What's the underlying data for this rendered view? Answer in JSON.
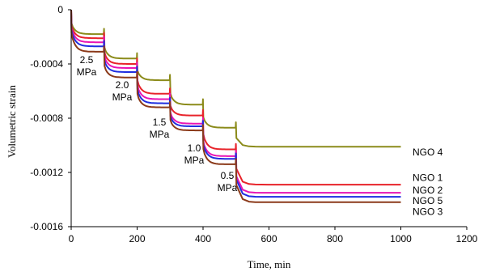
{
  "chart_data": {
    "type": "line",
    "xlabel": "Time, min",
    "ylabel": "Volumetric strain",
    "xlim": [
      0,
      1200
    ],
    "ylim": [
      -0.0016,
      0
    ],
    "x_ticks": [
      {
        "value": 0,
        "label": "0"
      },
      {
        "value": 200,
        "label": "200"
      },
      {
        "value": 400,
        "label": "400"
      },
      {
        "value": 600,
        "label": "600"
      },
      {
        "value": 800,
        "label": "800"
      },
      {
        "value": 1000,
        "label": "1000"
      },
      {
        "value": 1200,
        "label": "1200"
      }
    ],
    "y_ticks": [
      {
        "value": 0,
        "label": "0"
      },
      {
        "value": -0.0004,
        "label": "-0.0004"
      },
      {
        "value": -0.0008,
        "label": "-0.0008"
      },
      {
        "value": -0.0012,
        "label": "-0.0012"
      },
      {
        "value": -0.0016,
        "label": "-0.0016"
      }
    ],
    "grid": false,
    "legend": "none",
    "stage_start_times": [
      0,
      100,
      200,
      300,
      400,
      500
    ],
    "series": [
      {
        "name": "NGO 4",
        "color": "#8b8b1a",
        "stage_levels": [
          -0.00018,
          -0.00036,
          -0.00052,
          -0.0007,
          -0.00087,
          -0.00101
        ]
      },
      {
        "name": "NGO 1",
        "color": "#e8232a",
        "stage_levels": [
          -0.00021,
          -0.0004,
          -0.00062,
          -0.00078,
          -0.00103,
          -0.00129
        ]
      },
      {
        "name": "NGO 2",
        "color": "#e815b5",
        "stage_levels": [
          -0.00024,
          -0.00043,
          -0.00066,
          -0.00084,
          -0.00108,
          -0.00135
        ]
      },
      {
        "name": "NGO 5",
        "color": "#1f2ee0",
        "stage_levels": [
          -0.00027,
          -0.00046,
          -0.00069,
          -0.00086,
          -0.0011,
          -0.00138
        ]
      },
      {
        "name": "NGO 3",
        "color": "#8b3a1a",
        "stage_levels": [
          -0.00031,
          -0.0005,
          -0.00072,
          -0.00089,
          -0.00114,
          -0.00142
        ]
      }
    ],
    "annotations": [
      {
        "line1": "2.5",
        "line2": "MPa"
      },
      {
        "line1": "2.0",
        "line2": "MPa"
      },
      {
        "line1": "1.5",
        "line2": "MPa"
      },
      {
        "line1": "1.0",
        "line2": "MPa"
      },
      {
        "line1": "0.5",
        "line2": "MPa"
      }
    ]
  }
}
